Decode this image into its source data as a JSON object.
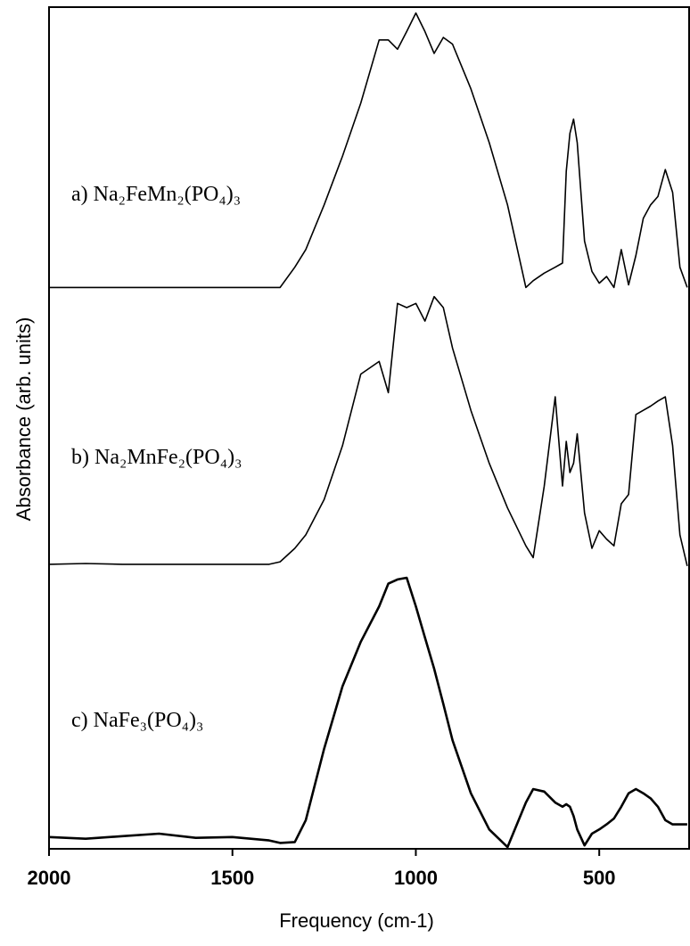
{
  "chart_data": {
    "type": "line",
    "x_label": "Frequency (cm-1)",
    "y_label": "Absorbance (arb. units)",
    "xlim": [
      2000,
      255
    ],
    "xticks": [
      2000,
      1500,
      1000,
      500
    ],
    "ylim": [
      0,
      100
    ],
    "x": [
      2000,
      1900,
      1800,
      1700,
      1600,
      1500,
      1400,
      1370,
      1330,
      1300,
      1250,
      1200,
      1150,
      1100,
      1075,
      1050,
      1025,
      1000,
      975,
      950,
      925,
      900,
      850,
      800,
      750,
      700,
      680,
      650,
      620,
      600,
      590,
      580,
      570,
      560,
      540,
      520,
      500,
      480,
      460,
      440,
      420,
      400,
      380,
      360,
      340,
      320,
      300,
      280,
      260
    ],
    "series": [
      {
        "name": "a) Na₂FeMn₂(PO₄)₃",
        "color": "#000000",
        "values": [
          66.7,
          66.7,
          66.7,
          66.7,
          66.7,
          66.7,
          66.7,
          66.7,
          69.1,
          71.2,
          76.5,
          82.3,
          88.6,
          96.1,
          96.1,
          95.0,
          97.1,
          99.3,
          97.1,
          94.5,
          96.4,
          95.6,
          90.3,
          83.9,
          76.5,
          66.7,
          67.5,
          68.4,
          69.1,
          69.6,
          80.5,
          85.0,
          86.7,
          83.9,
          72.2,
          68.6,
          67.2,
          68.0,
          66.7,
          71.2,
          67.0,
          70.5,
          74.9,
          76.5,
          77.5,
          80.7,
          78.0,
          69.1,
          66.7
        ]
      },
      {
        "name": "b) Na₂MnFe₂(PO₄)₃",
        "color": "#000000",
        "values": [
          33.8,
          33.9,
          33.8,
          33.8,
          33.8,
          33.8,
          33.8,
          34.1,
          35.7,
          37.3,
          41.5,
          47.9,
          56.4,
          57.9,
          54.2,
          64.8,
          64.3,
          64.8,
          62.7,
          65.6,
          64.3,
          59.5,
          52.1,
          45.8,
          40.5,
          36.0,
          34.6,
          43.1,
          53.7,
          43.1,
          48.4,
          44.7,
          45.8,
          49.3,
          39.9,
          35.7,
          37.8,
          36.8,
          36.0,
          41.0,
          42.1,
          51.6,
          52.1,
          52.6,
          53.2,
          53.7,
          47.9,
          37.3,
          33.6
        ]
      },
      {
        "name": "c) NaFe₃(PO₄)₃",
        "color": "#000000",
        "values": [
          1.4,
          1.2,
          1.5,
          1.8,
          1.3,
          1.4,
          1.0,
          0.7,
          0.8,
          3.4,
          11.9,
          19.3,
          24.6,
          28.8,
          31.5,
          32.0,
          32.2,
          28.8,
          25.1,
          21.4,
          17.2,
          12.9,
          6.6,
          2.3,
          0.2,
          5.5,
          7.1,
          6.8,
          5.5,
          5.0,
          5.3,
          5.0,
          3.9,
          2.3,
          0.4,
          1.8,
          2.3,
          2.9,
          3.6,
          5.0,
          6.6,
          7.1,
          6.6,
          6.0,
          5.0,
          3.4,
          2.9,
          2.9,
          2.9
        ]
      }
    ]
  }
}
